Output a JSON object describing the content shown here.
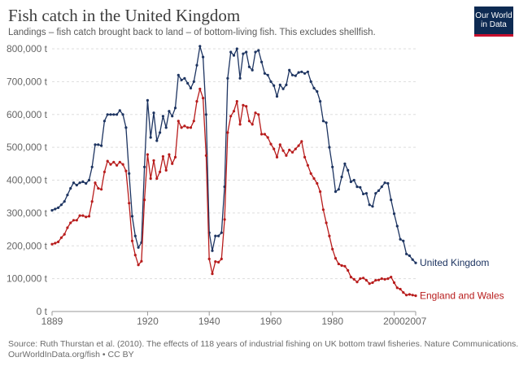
{
  "title": "Fish catch in the United Kingdom",
  "subtitle": "Landings – fish catch brought back to land – of bottom-living fish. This excludes shellfish.",
  "logo": {
    "line1": "Our World",
    "line2": "in Data"
  },
  "source_line1": "Source: Ruth Thurstan et al. (2010). The effects of 118 years of industrial fishing on UK bottom trawl fisheries. Nature Communications.",
  "source_line2": "OurWorldInData.org/fish • CC BY",
  "colors": {
    "uk": "#1d3461",
    "ew": "#b81c1c",
    "grid": "#dddddd",
    "axis_text": "#666666"
  },
  "chart_data": {
    "type": "line",
    "title": "Fish catch in the United Kingdom",
    "xlabel": "",
    "ylabel": "",
    "xlim": [
      1889,
      2007
    ],
    "ylim": [
      0,
      800000
    ],
    "x_ticks": [
      {
        "value": 1889,
        "label": "1889"
      },
      {
        "value": 1920,
        "label": "1920"
      },
      {
        "value": 1940,
        "label": "1940"
      },
      {
        "value": 1960,
        "label": "1960"
      },
      {
        "value": 1980,
        "label": "1980"
      },
      {
        "value": 2000,
        "label": "2000"
      },
      {
        "value": 2007,
        "label": "2007"
      }
    ],
    "y_ticks": [
      {
        "value": 0,
        "label": "0 t"
      },
      {
        "value": 100000,
        "label": "100,000 t"
      },
      {
        "value": 200000,
        "label": "200,000 t"
      },
      {
        "value": 300000,
        "label": "300,000 t"
      },
      {
        "value": 400000,
        "label": "400,000 t"
      },
      {
        "value": 500000,
        "label": "500,000 t"
      },
      {
        "value": 600000,
        "label": "600,000 t"
      },
      {
        "value": 700000,
        "label": "700,000 t"
      },
      {
        "value": 800000,
        "label": "800,000 t"
      }
    ],
    "series": [
      {
        "name": "United Kingdom",
        "color": "#1d3461",
        "points": [
          [
            1889,
            308000
          ],
          [
            1890,
            312000
          ],
          [
            1891,
            316000
          ],
          [
            1892,
            325000
          ],
          [
            1893,
            335000
          ],
          [
            1894,
            355000
          ],
          [
            1895,
            375000
          ],
          [
            1896,
            392000
          ],
          [
            1897,
            385000
          ],
          [
            1898,
            392000
          ],
          [
            1899,
            395000
          ],
          [
            1900,
            390000
          ],
          [
            1901,
            400000
          ],
          [
            1902,
            440000
          ],
          [
            1903,
            508000
          ],
          [
            1904,
            508000
          ],
          [
            1905,
            505000
          ],
          [
            1906,
            580000
          ],
          [
            1907,
            600000
          ],
          [
            1908,
            600000
          ],
          [
            1909,
            600000
          ],
          [
            1910,
            600000
          ],
          [
            1911,
            612000
          ],
          [
            1912,
            600000
          ],
          [
            1913,
            560000
          ],
          [
            1914,
            420000
          ],
          [
            1915,
            290000
          ],
          [
            1916,
            230000
          ],
          [
            1917,
            195000
          ],
          [
            1918,
            210000
          ],
          [
            1919,
            440000
          ],
          [
            1920,
            643000
          ],
          [
            1921,
            530000
          ],
          [
            1922,
            605000
          ],
          [
            1923,
            520000
          ],
          [
            1924,
            545000
          ],
          [
            1925,
            595000
          ],
          [
            1926,
            560000
          ],
          [
            1927,
            610000
          ],
          [
            1928,
            595000
          ],
          [
            1929,
            620000
          ],
          [
            1930,
            720000
          ],
          [
            1931,
            705000
          ],
          [
            1932,
            710000
          ],
          [
            1933,
            695000
          ],
          [
            1934,
            680000
          ],
          [
            1935,
            700000
          ],
          [
            1936,
            750000
          ],
          [
            1937,
            808000
          ],
          [
            1938,
            775000
          ],
          [
            1939,
            600000
          ],
          [
            1940,
            240000
          ],
          [
            1941,
            185000
          ],
          [
            1942,
            230000
          ],
          [
            1943,
            230000
          ],
          [
            1944,
            240000
          ],
          [
            1945,
            380000
          ],
          [
            1946,
            710000
          ],
          [
            1947,
            790000
          ],
          [
            1948,
            780000
          ],
          [
            1949,
            800000
          ],
          [
            1950,
            710000
          ],
          [
            1951,
            785000
          ],
          [
            1952,
            790000
          ],
          [
            1953,
            745000
          ],
          [
            1954,
            735000
          ],
          [
            1955,
            790000
          ],
          [
            1956,
            795000
          ],
          [
            1957,
            760000
          ],
          [
            1958,
            725000
          ],
          [
            1959,
            720000
          ],
          [
            1960,
            700000
          ],
          [
            1961,
            688000
          ],
          [
            1962,
            655000
          ],
          [
            1963,
            690000
          ],
          [
            1964,
            678000
          ],
          [
            1965,
            690000
          ],
          [
            1966,
            735000
          ],
          [
            1967,
            720000
          ],
          [
            1968,
            718000
          ],
          [
            1969,
            728000
          ],
          [
            1970,
            730000
          ],
          [
            1971,
            725000
          ],
          [
            1972,
            730000
          ],
          [
            1973,
            700000
          ],
          [
            1974,
            680000
          ],
          [
            1975,
            670000
          ],
          [
            1976,
            640000
          ],
          [
            1977,
            580000
          ],
          [
            1978,
            575000
          ],
          [
            1979,
            500000
          ],
          [
            1980,
            440000
          ],
          [
            1981,
            365000
          ],
          [
            1982,
            372000
          ],
          [
            1983,
            410000
          ],
          [
            1984,
            450000
          ],
          [
            1985,
            430000
          ],
          [
            1986,
            395000
          ],
          [
            1987,
            400000
          ],
          [
            1988,
            380000
          ],
          [
            1989,
            378000
          ],
          [
            1990,
            358000
          ],
          [
            1991,
            360000
          ],
          [
            1992,
            325000
          ],
          [
            1993,
            320000
          ],
          [
            1994,
            360000
          ],
          [
            1995,
            368000
          ],
          [
            1996,
            380000
          ],
          [
            1997,
            392000
          ],
          [
            1998,
            390000
          ],
          [
            1999,
            340000
          ],
          [
            2000,
            298000
          ],
          [
            2001,
            260000
          ],
          [
            2002,
            220000
          ],
          [
            2003,
            215000
          ],
          [
            2004,
            175000
          ],
          [
            2005,
            170000
          ],
          [
            2006,
            158000
          ],
          [
            2007,
            148000
          ]
        ]
      },
      {
        "name": "England and Wales",
        "color": "#b81c1c",
        "points": [
          [
            1889,
            205000
          ],
          [
            1890,
            208000
          ],
          [
            1891,
            212000
          ],
          [
            1892,
            225000
          ],
          [
            1893,
            235000
          ],
          [
            1894,
            255000
          ],
          [
            1895,
            270000
          ],
          [
            1896,
            278000
          ],
          [
            1897,
            278000
          ],
          [
            1898,
            292000
          ],
          [
            1899,
            292000
          ],
          [
            1900,
            288000
          ],
          [
            1901,
            290000
          ],
          [
            1902,
            335000
          ],
          [
            1903,
            392000
          ],
          [
            1904,
            375000
          ],
          [
            1905,
            372000
          ],
          [
            1906,
            425000
          ],
          [
            1907,
            458000
          ],
          [
            1908,
            448000
          ],
          [
            1909,
            455000
          ],
          [
            1910,
            445000
          ],
          [
            1911,
            455000
          ],
          [
            1912,
            448000
          ],
          [
            1913,
            428000
          ],
          [
            1914,
            330000
          ],
          [
            1915,
            215000
          ],
          [
            1916,
            172000
          ],
          [
            1917,
            142000
          ],
          [
            1918,
            153000
          ],
          [
            1919,
            340000
          ],
          [
            1920,
            478000
          ],
          [
            1921,
            405000
          ],
          [
            1922,
            460000
          ],
          [
            1923,
            405000
          ],
          [
            1924,
            425000
          ],
          [
            1925,
            472000
          ],
          [
            1926,
            430000
          ],
          [
            1927,
            478000
          ],
          [
            1928,
            450000
          ],
          [
            1929,
            470000
          ],
          [
            1930,
            580000
          ],
          [
            1931,
            560000
          ],
          [
            1932,
            565000
          ],
          [
            1933,
            560000
          ],
          [
            1934,
            560000
          ],
          [
            1935,
            580000
          ],
          [
            1936,
            640000
          ],
          [
            1937,
            678000
          ],
          [
            1938,
            650000
          ],
          [
            1939,
            475000
          ],
          [
            1940,
            160000
          ],
          [
            1941,
            115000
          ],
          [
            1942,
            152000
          ],
          [
            1943,
            150000
          ],
          [
            1944,
            160000
          ],
          [
            1945,
            280000
          ],
          [
            1946,
            545000
          ],
          [
            1947,
            595000
          ],
          [
            1948,
            610000
          ],
          [
            1949,
            640000
          ],
          [
            1950,
            570000
          ],
          [
            1951,
            628000
          ],
          [
            1952,
            625000
          ],
          [
            1953,
            580000
          ],
          [
            1954,
            570000
          ],
          [
            1955,
            605000
          ],
          [
            1956,
            600000
          ],
          [
            1957,
            540000
          ],
          [
            1958,
            540000
          ],
          [
            1959,
            530000
          ],
          [
            1960,
            510000
          ],
          [
            1961,
            495000
          ],
          [
            1962,
            470000
          ],
          [
            1963,
            508000
          ],
          [
            1964,
            490000
          ],
          [
            1965,
            475000
          ],
          [
            1966,
            492000
          ],
          [
            1967,
            485000
          ],
          [
            1968,
            495000
          ],
          [
            1969,
            505000
          ],
          [
            1970,
            518000
          ],
          [
            1971,
            470000
          ],
          [
            1972,
            445000
          ],
          [
            1973,
            420000
          ],
          [
            1974,
            405000
          ],
          [
            1975,
            390000
          ],
          [
            1976,
            365000
          ],
          [
            1977,
            310000
          ],
          [
            1978,
            270000
          ],
          [
            1979,
            230000
          ],
          [
            1980,
            190000
          ],
          [
            1981,
            162000
          ],
          [
            1982,
            145000
          ],
          [
            1983,
            140000
          ],
          [
            1984,
            138000
          ],
          [
            1985,
            125000
          ],
          [
            1986,
            105000
          ],
          [
            1987,
            98000
          ],
          [
            1988,
            90000
          ],
          [
            1989,
            100000
          ],
          [
            1990,
            102000
          ],
          [
            1991,
            95000
          ],
          [
            1992,
            85000
          ],
          [
            1993,
            88000
          ],
          [
            1994,
            95000
          ],
          [
            1995,
            96000
          ],
          [
            1996,
            100000
          ],
          [
            1997,
            98000
          ],
          [
            1998,
            100000
          ],
          [
            1999,
            105000
          ],
          [
            2000,
            88000
          ],
          [
            2001,
            72000
          ],
          [
            2002,
            68000
          ],
          [
            2003,
            58000
          ],
          [
            2004,
            50000
          ],
          [
            2005,
            52000
          ],
          [
            2006,
            50000
          ],
          [
            2007,
            48000
          ]
        ]
      }
    ]
  }
}
